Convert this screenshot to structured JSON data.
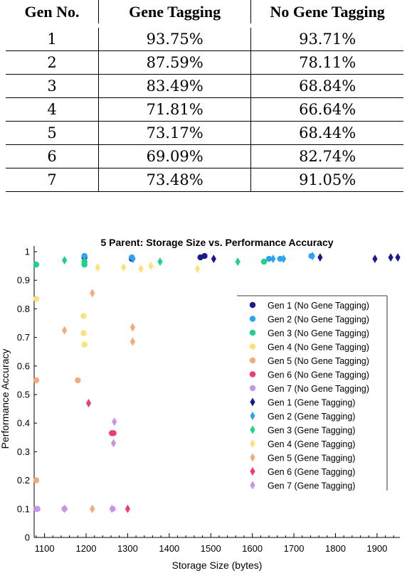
{
  "table": {
    "headers": [
      "Gen No.",
      "Gene Tagging",
      "No Gene Tagging"
    ],
    "rows": [
      [
        "1",
        "93.75%",
        "93.71%"
      ],
      [
        "2",
        "87.59%",
        "78.11%"
      ],
      [
        "3",
        "83.49%",
        "68.84%"
      ],
      [
        "4",
        "71.81%",
        "66.64%"
      ],
      [
        "5",
        "73.17%",
        "68.44%"
      ],
      [
        "6",
        "69.09%",
        "82.74%"
      ],
      [
        "7",
        "73.48%",
        "91.05%"
      ]
    ]
  },
  "chart_data": {
    "type": "scatter",
    "title": "5 Parent: Storage Size vs. Performance Accuracy",
    "xlabel": "Storage Size (bytes)",
    "ylabel": "Performance Accuracy",
    "xlim": [
      1075,
      1955
    ],
    "ylim": [
      0,
      1.02
    ],
    "x_ticks": [
      1100,
      1200,
      1300,
      1400,
      1500,
      1600,
      1700,
      1800,
      1900
    ],
    "y_ticks": [
      0,
      0.1,
      0.2,
      0.3,
      0.4,
      0.5,
      0.6,
      0.7,
      0.8,
      0.9,
      1
    ],
    "grid": false,
    "legend_position": "right",
    "series": [
      {
        "name": "Gen 1 (No Gene Tagging)",
        "marker": "circle",
        "color": "#1a1a8c",
        "points": [
          [
            1196,
            0.98
          ],
          [
            1310,
            0.975
          ],
          [
            1475,
            0.98
          ],
          [
            1485,
            0.985
          ]
        ]
      },
      {
        "name": "Gen 2 (No Gene Tagging)",
        "marker": "circle",
        "color": "#2aa4ef",
        "points": [
          [
            1196,
            0.985
          ],
          [
            1310,
            0.98
          ],
          [
            1640,
            0.975
          ],
          [
            1667,
            0.975
          ],
          [
            1742,
            0.985
          ]
        ]
      },
      {
        "name": "Gen 3 (No Gene Tagging)",
        "marker": "circle",
        "color": "#1dd38a",
        "points": [
          [
            1080,
            0.955
          ],
          [
            1196,
            0.965
          ],
          [
            1196,
            0.955
          ],
          [
            1628,
            0.965
          ]
        ]
      },
      {
        "name": "Gen 4 (No Gene Tagging)",
        "marker": "circle",
        "color": "#ffe17a",
        "points": [
          [
            1080,
            0.835
          ],
          [
            1194,
            0.775
          ],
          [
            1194,
            0.715
          ],
          [
            1196,
            0.675
          ]
        ]
      },
      {
        "name": "Gen 5 (No Gene Tagging)",
        "marker": "circle",
        "color": "#f7aa79",
        "points": [
          [
            1080,
            0.55
          ],
          [
            1080,
            0.2
          ],
          [
            1180,
            0.55
          ]
        ]
      },
      {
        "name": "Gen 6 (No Gene Tagging)",
        "marker": "circle",
        "color": "#ee3a77",
        "points": [
          [
            1262,
            0.365
          ],
          [
            1266,
            0.365
          ]
        ]
      },
      {
        "name": "Gen 7 (No Gene Tagging)",
        "marker": "circle",
        "color": "#c597e0",
        "points": [
          [
            1080,
            0.1
          ],
          [
            1083,
            0.1
          ],
          [
            1148,
            0.1
          ],
          [
            1264,
            0.1
          ]
        ]
      },
      {
        "name": "Gen 1 (Gene Tagging)",
        "marker": "diamond",
        "color": "#1a1a8c",
        "points": [
          [
            1507,
            0.975
          ],
          [
            1763,
            0.98
          ],
          [
            1895,
            0.975
          ],
          [
            1933,
            0.98
          ],
          [
            1950,
            0.98
          ]
        ]
      },
      {
        "name": "Gen 2 (Gene Tagging)",
        "marker": "diamond",
        "color": "#2aa4ef",
        "points": [
          [
            1313,
            0.975
          ],
          [
            1650,
            0.975
          ],
          [
            1675,
            0.975
          ],
          [
            1745,
            0.985
          ]
        ]
      },
      {
        "name": "Gen 3 (Gene Tagging)",
        "marker": "diamond",
        "color": "#1dd38a",
        "points": [
          [
            1148,
            0.97
          ],
          [
            1196,
            0.965
          ],
          [
            1378,
            0.965
          ],
          [
            1565,
            0.965
          ]
        ]
      },
      {
        "name": "Gen 4 (Gene Tagging)",
        "marker": "diamond",
        "color": "#ffe17a",
        "points": [
          [
            1228,
            0.945
          ],
          [
            1290,
            0.945
          ],
          [
            1332,
            0.94
          ],
          [
            1356,
            0.95
          ],
          [
            1468,
            0.94
          ]
        ]
      },
      {
        "name": "Gen 5 (Gene Tagging)",
        "marker": "diamond",
        "color": "#f7aa79",
        "points": [
          [
            1148,
            0.725
          ],
          [
            1215,
            0.855
          ],
          [
            1312,
            0.735
          ],
          [
            1312,
            0.685
          ],
          [
            1215,
            0.1
          ]
        ]
      },
      {
        "name": "Gen 6 (Gene Tagging)",
        "marker": "diamond",
        "color": "#ee3a77",
        "points": [
          [
            1206,
            0.47
          ],
          [
            1300,
            0.1
          ]
        ]
      },
      {
        "name": "Gen 7 (Gene Tagging)",
        "marker": "diamond",
        "color": "#c597e0",
        "points": [
          [
            1268,
            0.405
          ],
          [
            1266,
            0.33
          ],
          [
            1148,
            0.1
          ],
          [
            1262,
            0.1
          ]
        ]
      }
    ]
  }
}
